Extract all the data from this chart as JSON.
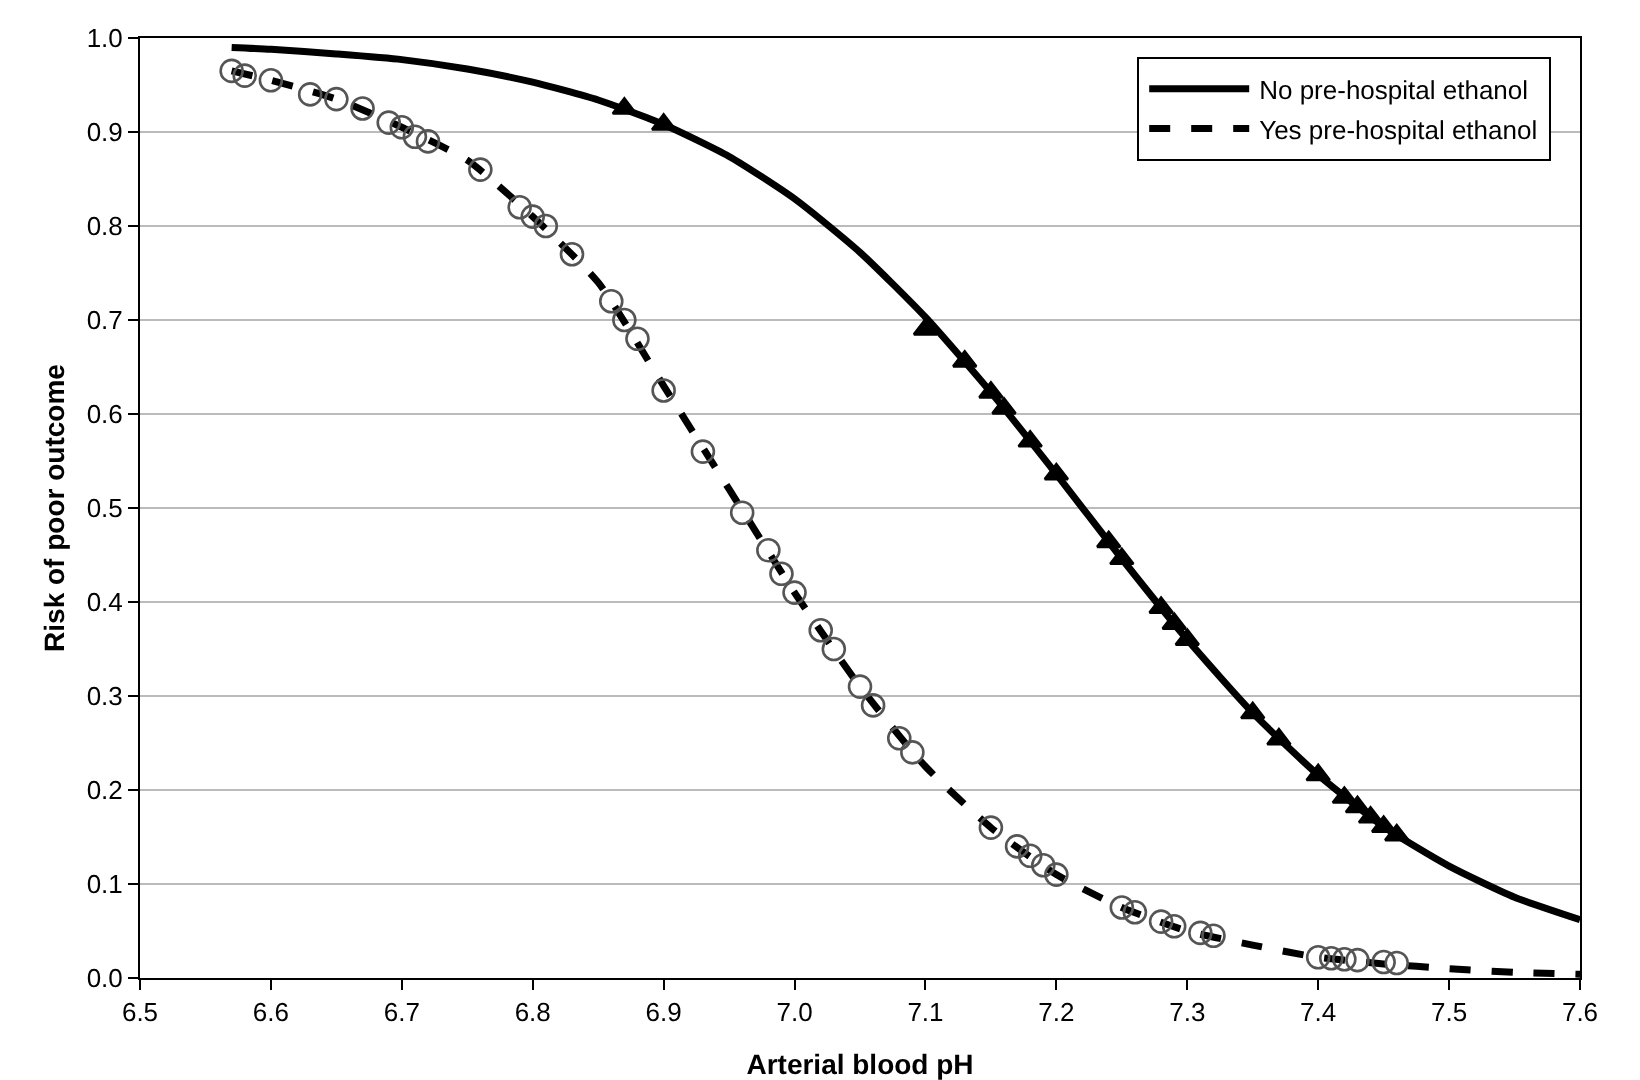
{
  "chart_data": {
    "type": "line",
    "xlabel": "Arterial blood pH",
    "ylabel": "Risk of poor outcome",
    "xlim": [
      6.5,
      7.6
    ],
    "xticks": [
      6.5,
      6.6,
      6.7,
      6.8,
      6.9,
      {
        "value": 7,
        "label": "7.0"
      },
      7.1,
      7.2,
      7.3,
      7.4,
      7.5,
      7.6
    ],
    "ylim": [
      0,
      1
    ],
    "yticks": [
      {
        "value": 0,
        "label": "0.0"
      },
      0.1,
      0.2,
      0.3,
      0.4,
      0.5,
      0.6,
      0.7,
      0.8,
      0.9,
      {
        "value": 1,
        "label": "1.0"
      }
    ],
    "grid": "y",
    "legend": "top right",
    "series": [
      {
        "name": "No pre-hospital ethanol",
        "color": "#000000",
        "line_style": "solid",
        "marker": "none",
        "x": [
          6.57,
          6.6,
          6.65,
          6.7,
          6.75,
          6.8,
          6.85,
          6.9,
          6.95,
          7.0,
          7.05,
          7.1,
          7.15,
          7.2,
          7.25,
          7.3,
          7.35,
          7.4,
          7.45,
          7.5,
          7.55,
          7.6
        ],
        "values": [
          0.99,
          0.988,
          0.983,
          0.977,
          0.967,
          0.953,
          0.934,
          0.908,
          0.874,
          0.829,
          0.772,
          0.703,
          0.623,
          0.536,
          0.446,
          0.36,
          0.282,
          0.216,
          0.161,
          0.119,
          0.086,
          0.062
        ]
      },
      {
        "name": "Yes pre-hospital ethanol",
        "color": "#000000",
        "line_style": "dashed",
        "marker": "none",
        "x": [
          6.57,
          6.6,
          6.65,
          6.7,
          6.75,
          6.8,
          6.85,
          6.9,
          6.95,
          7.0,
          7.05,
          7.1,
          7.15,
          7.2,
          7.25,
          7.3,
          7.35,
          7.4,
          7.45,
          7.5,
          7.55,
          7.6
        ],
        "values": [
          0.965,
          0.955,
          0.935,
          0.905,
          0.87,
          0.81,
          0.74,
          0.63,
          0.52,
          0.41,
          0.31,
          0.225,
          0.16,
          0.11,
          0.075,
          0.05,
          0.035,
          0.022,
          0.015,
          0.01,
          0.006,
          0.004
        ]
      },
      {
        "type": "scatter",
        "color": "#000000",
        "marker": "triangle",
        "x": [
          6.87,
          6.9,
          7.1,
          7.13,
          7.15,
          7.16,
          7.18,
          7.2,
          7.24,
          7.25,
          7.28,
          7.29,
          7.3,
          7.35,
          7.37,
          7.4,
          7.42,
          7.43,
          7.44,
          7.45,
          7.46
        ],
        "values": [
          0.925,
          0.908,
          0.69,
          0.656,
          0.623,
          0.606,
          0.571,
          0.536,
          0.464,
          0.446,
          0.394,
          0.377,
          0.36,
          0.282,
          0.254,
          0.216,
          0.192,
          0.182,
          0.171,
          0.161,
          0.152
        ]
      },
      {
        "type": "scatter",
        "color": "#555555",
        "marker": "circle",
        "x": [
          6.57,
          6.58,
          6.6,
          6.63,
          6.65,
          6.67,
          6.69,
          6.7,
          6.71,
          6.72,
          6.76,
          6.79,
          6.8,
          6.81,
          6.83,
          6.86,
          6.87,
          6.88,
          6.9,
          6.93,
          6.96,
          6.98,
          6.99,
          7.0,
          7.02,
          7.03,
          7.05,
          7.06,
          7.08,
          7.09,
          7.15,
          7.17,
          7.18,
          7.19,
          7.2,
          7.25,
          7.26,
          7.28,
          7.29,
          7.31,
          7.32,
          7.4,
          7.41,
          7.42,
          7.43,
          7.45,
          7.46
        ],
        "values": [
          0.965,
          0.96,
          0.955,
          0.94,
          0.935,
          0.925,
          0.91,
          0.905,
          0.895,
          0.89,
          0.86,
          0.82,
          0.81,
          0.8,
          0.77,
          0.72,
          0.7,
          0.68,
          0.625,
          0.56,
          0.495,
          0.455,
          0.43,
          0.41,
          0.37,
          0.35,
          0.31,
          0.29,
          0.255,
          0.24,
          0.16,
          0.14,
          0.13,
          0.12,
          0.11,
          0.075,
          0.07,
          0.06,
          0.055,
          0.048,
          0.045,
          0.022,
          0.021,
          0.02,
          0.019,
          0.017,
          0.016
        ]
      }
    ]
  }
}
